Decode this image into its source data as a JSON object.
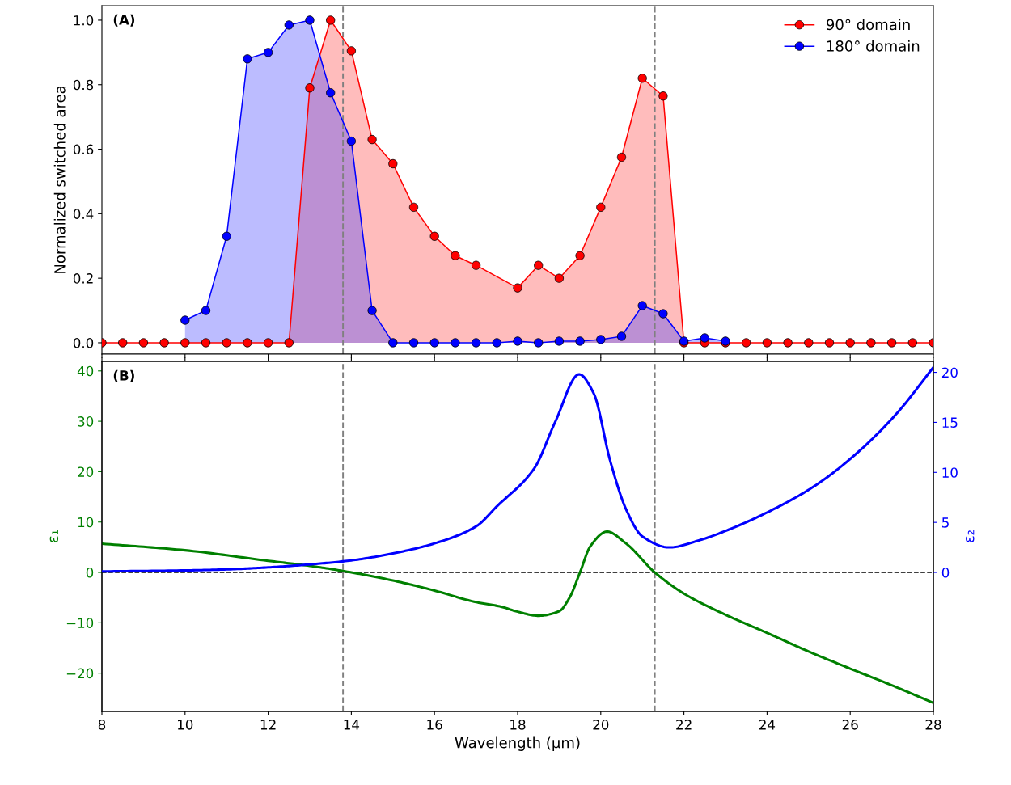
{
  "chart_data": [
    {
      "type": "area",
      "ylabel": "Normalized switched area",
      "annotations": [
        "(A)"
      ],
      "marker": "circle",
      "legend": "top right",
      "tick_labels": "y",
      "xlim": [
        8,
        28
      ],
      "xticks": [
        8,
        10,
        12,
        14,
        16,
        18,
        20,
        22,
        24,
        26,
        28
      ],
      "ylim": [
        -0.035,
        1.045
      ],
      "yticks": [
        {
          "value": 0,
          "label": "0.0"
        },
        0.2,
        0.4,
        0.6,
        0.8,
        {
          "value": 1,
          "label": "1.0"
        }
      ],
      "ref_lines": [
        {
          "axis": "x",
          "value": 13.8,
          "color": "#808080",
          "line_style": "dashed"
        },
        {
          "axis": "x",
          "value": 21.3,
          "color": "#808080",
          "line_style": "dashed"
        }
      ],
      "series": [
        {
          "name": "90° domain",
          "color": "#ff0000",
          "x": [
            8,
            8.5,
            9,
            9.5,
            10,
            10.5,
            11,
            11.5,
            12,
            12.5,
            13,
            13.5,
            14,
            14.5,
            15,
            15.5,
            16,
            16.5,
            17,
            18,
            18.5,
            19,
            19.5,
            20,
            20.5,
            21,
            21.5,
            22,
            22.5,
            23,
            23.5,
            24,
            24.5,
            25,
            25.5,
            26,
            26.5,
            27,
            27.5,
            28
          ],
          "values": [
            0,
            0,
            0,
            0,
            0,
            0,
            0,
            0,
            0,
            0,
            0.79,
            1.0,
            0.905,
            0.63,
            0.555,
            0.42,
            0.33,
            0.27,
            0.24,
            0.17,
            0.24,
            0.2,
            0.27,
            0.42,
            0.575,
            0.82,
            0.765,
            0,
            0,
            0,
            0,
            0,
            0,
            0,
            0,
            0,
            0,
            0,
            0,
            0
          ]
        },
        {
          "name": "180° domain",
          "color": "#0000ff",
          "x": [
            10,
            10.5,
            11,
            11.5,
            12,
            12.5,
            13,
            13.5,
            14,
            14.5,
            15,
            15.5,
            16,
            16.5,
            17,
            17.5,
            18,
            18.5,
            19,
            19.5,
            20,
            20.5,
            21,
            21.5,
            22,
            22.5,
            23
          ],
          "values": [
            0.07,
            0.1,
            0.33,
            0.88,
            0.9,
            0.985,
            1.0,
            0.775,
            0.625,
            0.1,
            0,
            0,
            0,
            0,
            0,
            0,
            0.005,
            0,
            0.005,
            0.005,
            0.01,
            0.02,
            0.115,
            0.09,
            0.005,
            0.015,
            0.005
          ]
        }
      ]
    },
    {
      "type": "line",
      "xlabel": "Wavelength (μm)",
      "ylabel": "ε₁",
      "y2label": "ε₂",
      "annotations": [
        "(B)"
      ],
      "xlim": [
        8,
        28
      ],
      "xticks": [
        8,
        10,
        12,
        14,
        16,
        18,
        20,
        22,
        24,
        26,
        28
      ],
      "ylim": [
        -27.6,
        41.9
      ],
      "yticks": [
        -20,
        -10,
        0,
        10,
        20,
        30,
        40
      ],
      "y2lim": [
        -13.9,
        21.1
      ],
      "y2ticks": [
        0,
        5,
        10,
        15,
        20
      ],
      "ref_lines": [
        {
          "axis": "x",
          "value": 13.8,
          "color": "#808080",
          "line_style": "dashed"
        },
        {
          "axis": "x",
          "value": 21.3,
          "color": "#808080",
          "line_style": "dashed"
        },
        {
          "axis": "y",
          "value": 0,
          "color": "#000000",
          "line_style": "dashed"
        }
      ],
      "series": [
        {
          "color": "#008000",
          "x": [
            8,
            10,
            12,
            13,
            14,
            15,
            16,
            17,
            17.6,
            18,
            18.5,
            19,
            19.25,
            19.5,
            19.75,
            20.15,
            20.6,
            21.3,
            22,
            23,
            24,
            25,
            26,
            27,
            28
          ],
          "values": [
            5.7,
            4.4,
            2.3,
            1.3,
            0,
            -1.6,
            -3.6,
            -5.9,
            -6.8,
            -7.8,
            -8.6,
            -7.7,
            -5,
            0,
            5.2,
            8.1,
            5.8,
            0,
            -4.2,
            -8.4,
            -12.0,
            -15.7,
            -19.1,
            -22.4,
            -25.9
          ]
        },
        {
          "color": "#0000ff",
          "axis": "y2",
          "x": [
            8,
            10,
            11,
            12,
            13,
            14,
            15,
            16,
            17,
            17.5,
            18.4,
            18.9,
            19.48,
            19.83,
            20.23,
            20.62,
            21.0,
            21.65,
            22.36,
            23.15,
            24.1,
            25.13,
            26.1,
            27.1,
            28
          ],
          "values": [
            0.1,
            0.2,
            0.3,
            0.5,
            0.8,
            1.2,
            1.9,
            2.9,
            4.6,
            6.6,
            10.4,
            15.0,
            19.8,
            17.9,
            11.1,
            6.2,
            3.6,
            2.5,
            3.2,
            4.4,
            6.2,
            8.6,
            11.7,
            15.8,
            20.5
          ]
        }
      ]
    }
  ]
}
